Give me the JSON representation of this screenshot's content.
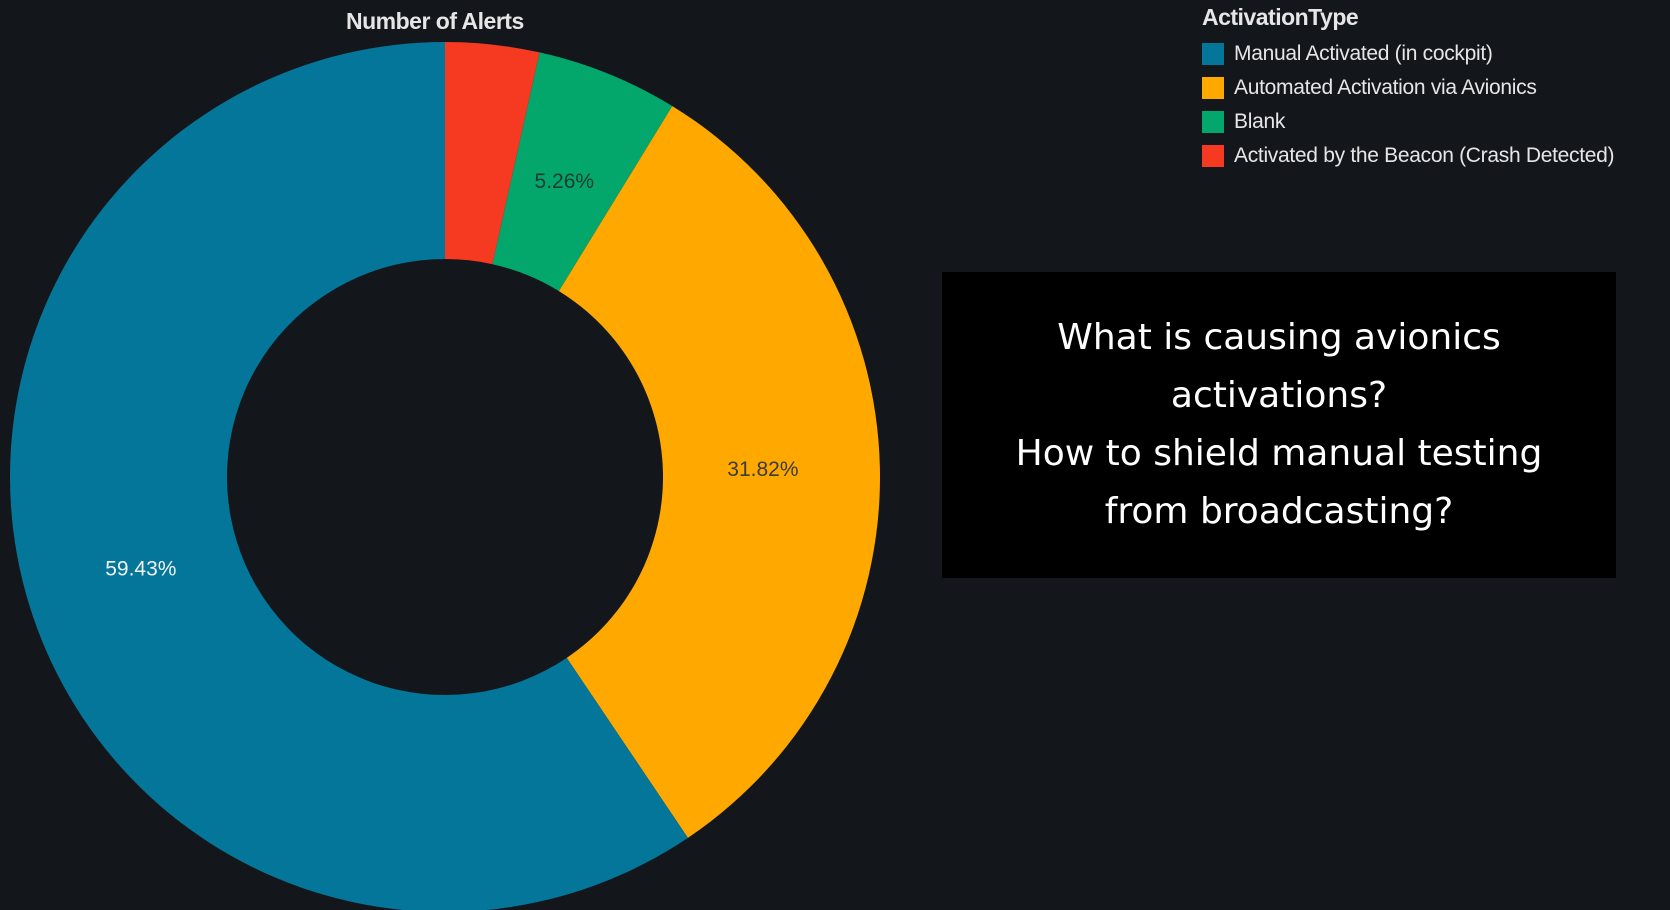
{
  "chart_data": {
    "type": "pie",
    "title": "Number of Alerts",
    "legend_title": "ActivationType",
    "legend_placement": "top-right",
    "donut": true,
    "series": [
      {
        "name": "Manual Activated (in cockpit)",
        "value": 59.43,
        "label": "59.43%",
        "color": "#04769a"
      },
      {
        "name": "Automated Activation via Avionics",
        "value": 31.82,
        "label": "31.82%",
        "color": "#ffa800"
      },
      {
        "name": "Blank",
        "value": 5.26,
        "label": "5.26%",
        "color": "#03a76c"
      },
      {
        "name": "Activated by the Beacon (Crash Detected)",
        "value": 3.49,
        "label": "",
        "color": "#f53a21"
      }
    ],
    "label_colors": {
      "Manual Activated (in cockpit)": "#f2f2f2",
      "Automated Activation via Avionics": "#3b3b3b",
      "Blank": "#1e3b30",
      "Activated by the Beacon (Crash Detected)": "#ffffff"
    }
  },
  "question": {
    "lines": [
      "What is causing avionics",
      "activations?",
      "How to shield manual testing",
      "from broadcasting?"
    ]
  },
  "colors": {
    "background": "#13171c",
    "box": "#000000"
  }
}
